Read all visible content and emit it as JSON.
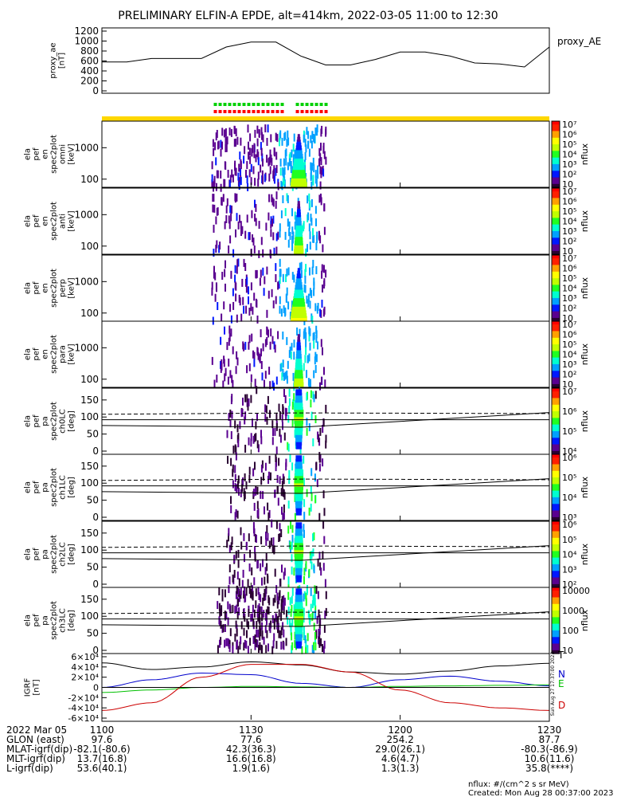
{
  "title": "PRELIMINARY ELFIN-A EPDE, alt=414km, 2022-03-05 11:00 to 12:30",
  "colors": {
    "axis": "#000000",
    "status_bar": "#ffd700",
    "green_marks": "#00d000",
    "red_marks": "#ff0000",
    "igrf_red": "#cc0000",
    "igrf_blue": "#0000cc",
    "igrf_green": "#00c000",
    "igrf_black": "#000000",
    "colormap": [
      "#2a0033",
      "#5a0090",
      "#0018ff",
      "#00a0ff",
      "#00ffd0",
      "#20ff20",
      "#c0ff00",
      "#ffff00",
      "#ffa000",
      "#ff2000",
      "#ff0000"
    ]
  },
  "panels": {
    "proxy_ae": {
      "ylabel": [
        "proxy_ae",
        "[nT]"
      ],
      "side_label": "proxy_AE",
      "yticks": [
        "0",
        "200",
        "400",
        "600",
        "800",
        "1000",
        "1200"
      ]
    },
    "spectrograms": [
      {
        "id": "omni",
        "ylabel": [
          "ela",
          "pef",
          "en",
          "spec2plot",
          "omni",
          "[keV]"
        ],
        "yticks": [
          "100",
          "1000"
        ],
        "cbar_ticks": [
          "10⁷",
          "10⁶",
          "10⁵",
          "10⁴",
          "10³",
          "10²",
          "10"
        ],
        "cbar_label": "nflux"
      },
      {
        "id": "anti",
        "ylabel": [
          "ela",
          "pef",
          "en",
          "spec2plot",
          "anti",
          "[keV]"
        ],
        "yticks": [
          "100",
          "1000"
        ],
        "cbar_ticks": [
          "10⁷",
          "10⁶",
          "10⁵",
          "10⁴",
          "10³",
          "10²",
          "10"
        ],
        "cbar_label": "nflux"
      },
      {
        "id": "perp",
        "ylabel": [
          "ela",
          "pef",
          "en",
          "spec2plot",
          "perp",
          "[keV]"
        ],
        "yticks": [
          "100",
          "1000"
        ],
        "cbar_ticks": [
          "10⁷",
          "10⁶",
          "10⁵",
          "10⁴",
          "10³",
          "10²",
          "10"
        ],
        "cbar_label": "nflux"
      },
      {
        "id": "para",
        "ylabel": [
          "ela",
          "pef",
          "en",
          "spec2plot",
          "para",
          "[keV]"
        ],
        "yticks": [
          "100",
          "1000"
        ],
        "cbar_ticks": [
          "10⁷",
          "10⁶",
          "10⁵",
          "10⁴",
          "10³",
          "10²",
          "10"
        ],
        "cbar_label": "nflux"
      }
    ],
    "pitch_angle": [
      {
        "id": "ch0LC",
        "ylabel": [
          "ela",
          "pef",
          "pa",
          "spec2plot",
          "ch0LC",
          "[deg]"
        ],
        "yticks": [
          "0",
          "50",
          "100",
          "150"
        ],
        "cbar_ticks": [
          "10⁷",
          "10⁶",
          "10⁵",
          "10⁴"
        ],
        "cbar_label": "nflux"
      },
      {
        "id": "ch1LC",
        "ylabel": [
          "ela",
          "pef",
          "pa",
          "spec2plot",
          "ch1LC",
          "[deg]"
        ],
        "yticks": [
          "0",
          "50",
          "100",
          "150"
        ],
        "cbar_ticks": [
          "10⁶",
          "10⁵",
          "10⁴",
          "10³"
        ],
        "cbar_label": "nflux"
      },
      {
        "id": "ch2LC",
        "ylabel": [
          "ela",
          "pef",
          "pa",
          "spec2plot",
          "ch2LC",
          "[deg]"
        ],
        "yticks": [
          "0",
          "50",
          "100",
          "150"
        ],
        "cbar_ticks": [
          "10⁶",
          "10⁵",
          "10⁴",
          "10³",
          "10²"
        ],
        "cbar_label": "nflux"
      },
      {
        "id": "ch3LC",
        "ylabel": [
          "ela",
          "pef",
          "pa",
          "spec2plot",
          "ch3LC",
          "[deg]"
        ],
        "yticks": [
          "0",
          "50",
          "100",
          "150"
        ],
        "cbar_ticks": [
          "10000",
          "1000",
          "100",
          "10"
        ],
        "cbar_label": "nflux"
      }
    ],
    "igrf": {
      "ylabel": [
        "IGRF",
        "[nT]"
      ],
      "yticks": [
        "-6×10⁴",
        "-4×10⁴",
        "-2×10⁴",
        "0",
        "2×10⁴",
        "4×10⁴",
        "6×10⁴"
      ],
      "components": [
        {
          "letter": "T",
          "color": "#000000"
        },
        {
          "letter": "N",
          "color": "#0000cc"
        },
        {
          "letter": "E",
          "color": "#00c000"
        },
        {
          "letter": "D",
          "color": "#cc0000"
        }
      ],
      "stamp": "Sun Aug 27 17:37:00 2023"
    }
  },
  "x_axis": {
    "ticks": [
      "1100",
      "1130",
      "1200",
      "1230"
    ]
  },
  "ephemeris": {
    "rows": [
      {
        "label": "2022 Mar 05",
        "values": [
          "1100",
          "1130",
          "1200",
          "1230"
        ]
      },
      {
        "label": "GLON (east)",
        "values": [
          "97.6",
          "77.6",
          "254.2",
          "87.7"
        ]
      },
      {
        "label": "MLAT-igrf(dip)",
        "values": [
          "-82.1(-80.6)",
          "42.3(36.3)",
          "29.0(26.1)",
          "-80.3(-86.9)"
        ]
      },
      {
        "label": "MLT-igrf(dip)",
        "values": [
          "13.7(16.8)",
          "16.6(16.8)",
          "4.6(4.7)",
          "10.6(11.6)"
        ]
      },
      {
        "label": "L-igrf(dip)",
        "values": [
          "53.6(40.1)",
          "1.9(1.6)",
          "1.3(1.3)",
          "35.8(****)"
        ]
      }
    ]
  },
  "footer": {
    "units": "nflux: #/(cm^2 s sr MeV)",
    "created": "Created: Mon Aug 28 00:37:00 2023"
  },
  "chart_data": {
    "type": "line",
    "title": "PRELIMINARY ELFIN-A EPDE, alt=414km, 2022-03-05 11:00 to 12:30",
    "xlabel": "",
    "x_range_hhmm": [
      "1100",
      "1230"
    ],
    "series": [
      {
        "name": "proxy_AE",
        "ylabel": "proxy_ae [nT]",
        "ylim": [
          0,
          1200
        ],
        "x_min": [
          0,
          5,
          10,
          15,
          20,
          25,
          30,
          35,
          40,
          45,
          50,
          55,
          60,
          65,
          70,
          75,
          80,
          85,
          90
        ],
        "y": [
          580,
          580,
          650,
          650,
          650,
          880,
          980,
          980,
          700,
          520,
          520,
          630,
          780,
          780,
          700,
          560,
          540,
          480,
          880
        ]
      },
      {
        "name": "T",
        "ylabel": "IGRF [nT]",
        "ylim": [
          -60000,
          60000
        ],
        "x_min": [
          0,
          10,
          20,
          30,
          40,
          50,
          60,
          70,
          80,
          90
        ],
        "y": [
          48000,
          35000,
          40000,
          50000,
          44000,
          30000,
          26000,
          32000,
          42000,
          47000
        ]
      },
      {
        "name": "N",
        "x_min": [
          0,
          10,
          20,
          30,
          40,
          50,
          60,
          70,
          80,
          90
        ],
        "y": [
          0,
          15000,
          28000,
          25000,
          8000,
          0,
          15000,
          22000,
          12000,
          3000
        ]
      },
      {
        "name": "E",
        "x_min": [
          0,
          10,
          20,
          30,
          40,
          50,
          60,
          70,
          80,
          90
        ],
        "y": [
          -10000,
          -5000,
          0,
          2000,
          1000,
          0,
          2000,
          3000,
          4000,
          5000
        ]
      },
      {
        "name": "D",
        "x_min": [
          0,
          10,
          20,
          30,
          40,
          50,
          60,
          70,
          80,
          90
        ],
        "y": [
          -45000,
          -30000,
          20000,
          45000,
          45000,
          30000,
          -5000,
          -30000,
          -40000,
          -45000
        ]
      }
    ],
    "grid": false
  }
}
